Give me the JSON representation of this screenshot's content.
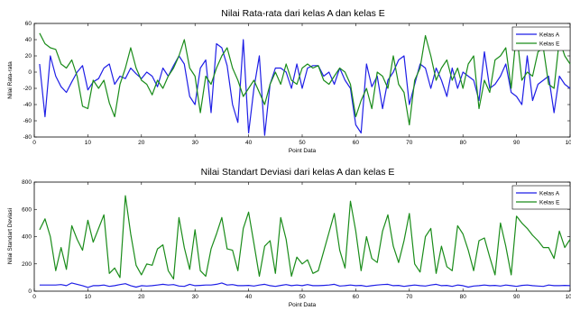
{
  "chart_data": [
    {
      "type": "line",
      "title": "Nilai Rata-rata dari kelas A dan kelas E",
      "xlabel": "Point Data",
      "ylabel": "Nilai Rata-rata",
      "xlim": [
        0,
        100
      ],
      "ylim": [
        -80,
        60
      ],
      "xticks": [
        "0",
        "10",
        "20",
        "30",
        "40",
        "50",
        "60",
        "70",
        "80",
        "90",
        "100"
      ],
      "yticks": [
        "-80",
        "-60",
        "-40",
        "-20",
        "0",
        "20",
        "40",
        "60"
      ],
      "legend_position": "top-right",
      "colors": {
        "Kelas A": "#1f1fe6",
        "Kelas E": "#1a8c1a"
      },
      "x": [
        1,
        2,
        3,
        4,
        5,
        6,
        7,
        8,
        9,
        10,
        11,
        12,
        13,
        14,
        15,
        16,
        17,
        18,
        19,
        20,
        21,
        22,
        23,
        24,
        25,
        26,
        27,
        28,
        29,
        30,
        31,
        32,
        33,
        34,
        35,
        36,
        37,
        38,
        39,
        40,
        41,
        42,
        43,
        44,
        45,
        46,
        47,
        48,
        49,
        50,
        51,
        52,
        53,
        54,
        55,
        56,
        57,
        58,
        59,
        60,
        61,
        62,
        63,
        64,
        65,
        66,
        67,
        68,
        69,
        70,
        71,
        72,
        73,
        74,
        75,
        76,
        77,
        78,
        79,
        80,
        81,
        82,
        83,
        84,
        85,
        86,
        87,
        88,
        89,
        90,
        91,
        92,
        93,
        94,
        95,
        96,
        97,
        98,
        99,
        100
      ],
      "series": [
        {
          "name": "Kelas A",
          "values": [
            10,
            -55,
            20,
            -5,
            -18,
            -25,
            -12,
            0,
            8,
            -22,
            -12,
            -8,
            5,
            10,
            -15,
            -5,
            -8,
            5,
            -2,
            -8,
            0,
            -5,
            -18,
            5,
            -5,
            8,
            20,
            10,
            -30,
            -40,
            5,
            15,
            -50,
            35,
            30,
            8,
            -40,
            -62,
            40,
            -75,
            -20,
            20,
            -78,
            -15,
            5,
            5,
            0,
            -20,
            10,
            -20,
            5,
            8,
            8,
            -5,
            0,
            -15,
            5,
            -10,
            -20,
            -65,
            -75,
            10,
            -18,
            -5,
            -45,
            -10,
            0,
            15,
            20,
            -40,
            -15,
            10,
            5,
            -20,
            5,
            -10,
            -30,
            5,
            -20,
            0,
            -5,
            -10,
            -35,
            25,
            -20,
            -15,
            -5,
            10,
            -25,
            -30,
            -40,
            20,
            -35,
            -15,
            -10,
            -5,
            -50,
            -5,
            -15,
            -20
          ]
        },
        {
          "name": "Kelas E",
          "values": [
            48,
            35,
            30,
            28,
            10,
            5,
            15,
            -5,
            -42,
            -45,
            -10,
            -20,
            -10,
            -38,
            -55,
            -15,
            5,
            30,
            5,
            -10,
            -15,
            -28,
            -10,
            -20,
            -5,
            5,
            20,
            40,
            5,
            -5,
            -50,
            -5,
            -15,
            5,
            20,
            30,
            5,
            -10,
            -30,
            -20,
            -10,
            -25,
            -40,
            -15,
            0,
            -15,
            10,
            -10,
            -15,
            5,
            10,
            5,
            8,
            -10,
            -15,
            -5,
            5,
            0,
            -15,
            -55,
            -35,
            -20,
            -45,
            0,
            -5,
            -20,
            20,
            -15,
            -25,
            -65,
            -10,
            5,
            45,
            20,
            -10,
            5,
            15,
            -10,
            5,
            -20,
            10,
            20,
            -45,
            -10,
            -25,
            15,
            20,
            30,
            -20,
            50,
            -10,
            0,
            -5,
            25,
            30,
            -15,
            -20,
            40,
            20,
            10
          ]
        }
      ]
    },
    {
      "type": "line",
      "title": "Nilai Standart Deviasi dari kelas A dan kelas E",
      "xlabel": "Point Data",
      "ylabel": "Nilai Standart Deviasi",
      "xlim": [
        0,
        100
      ],
      "ylim": [
        0,
        800
      ],
      "xticks": [
        "0",
        "10",
        "20",
        "30",
        "40",
        "50",
        "60",
        "70",
        "80",
        "90",
        "100"
      ],
      "yticks": [
        "0",
        "200",
        "400",
        "600",
        "800"
      ],
      "legend_position": "top-right",
      "colors": {
        "Kelas A": "#1f1fe6",
        "Kelas E": "#1a8c1a"
      },
      "x": [
        1,
        2,
        3,
        4,
        5,
        6,
        7,
        8,
        9,
        10,
        11,
        12,
        13,
        14,
        15,
        16,
        17,
        18,
        19,
        20,
        21,
        22,
        23,
        24,
        25,
        26,
        27,
        28,
        29,
        30,
        31,
        32,
        33,
        34,
        35,
        36,
        37,
        38,
        39,
        40,
        41,
        42,
        43,
        44,
        45,
        46,
        47,
        48,
        49,
        50,
        51,
        52,
        53,
        54,
        55,
        56,
        57,
        58,
        59,
        60,
        61,
        62,
        63,
        64,
        65,
        66,
        67,
        68,
        69,
        70,
        71,
        72,
        73,
        74,
        75,
        76,
        77,
        78,
        79,
        80,
        81,
        82,
        83,
        84,
        85,
        86,
        87,
        88,
        89,
        90,
        91,
        92,
        93,
        94,
        95,
        96,
        97,
        98,
        99,
        100
      ],
      "series": [
        {
          "name": "Kelas A",
          "values": [
            45,
            45,
            45,
            45,
            48,
            40,
            60,
            50,
            40,
            28,
            40,
            40,
            45,
            35,
            40,
            48,
            55,
            40,
            30,
            40,
            38,
            40,
            45,
            50,
            45,
            48,
            38,
            35,
            50,
            40,
            42,
            45,
            45,
            50,
            60,
            45,
            48,
            40,
            40,
            42,
            38,
            45,
            50,
            40,
            35,
            42,
            48,
            40,
            45,
            40,
            48,
            40,
            40,
            42,
            45,
            50,
            38,
            40,
            45,
            40,
            42,
            35,
            40,
            45,
            48,
            50,
            40,
            42,
            35,
            40,
            45,
            40,
            38,
            45,
            50,
            40,
            42,
            35,
            45,
            40,
            30,
            38,
            40,
            45,
            40,
            42,
            38,
            45,
            40,
            35,
            42,
            45,
            40,
            38,
            35,
            45,
            40,
            40,
            42,
            40
          ]
        },
        {
          "name": "Kelas E",
          "values": [
            450,
            530,
            400,
            150,
            320,
            160,
            480,
            380,
            300,
            520,
            360,
            460,
            560,
            130,
            170,
            100,
            700,
            420,
            190,
            120,
            200,
            190,
            310,
            340,
            150,
            90,
            540,
            320,
            160,
            450,
            150,
            110,
            310,
            420,
            540,
            310,
            300,
            150,
            460,
            580,
            350,
            110,
            330,
            370,
            130,
            540,
            380,
            110,
            250,
            200,
            230,
            130,
            150,
            290,
            430,
            570,
            300,
            170,
            660,
            440,
            150,
            400,
            240,
            210,
            440,
            560,
            330,
            210,
            370,
            570,
            200,
            140,
            400,
            460,
            130,
            330,
            180,
            150,
            480,
            420,
            300,
            150,
            370,
            390,
            250,
            120,
            500,
            330,
            120,
            550,
            500,
            460,
            410,
            370,
            320,
            320,
            240,
            440,
            320,
            380
          ]
        }
      ]
    }
  ]
}
